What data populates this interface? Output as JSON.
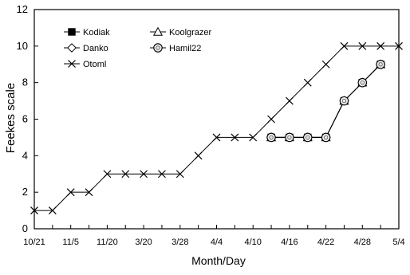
{
  "chart_data": {
    "type": "line",
    "xlabel": "Month/Day",
    "ylabel": "Feekes scale",
    "ylim": [
      0,
      12
    ],
    "yticks": [
      0,
      2,
      4,
      6,
      8,
      10,
      12
    ],
    "x_tick_labels": [
      "10/21",
      "11/5",
      "11/20",
      "3/20",
      "3/28",
      "4/4",
      "4/10",
      "4/16",
      "4/22",
      "4/28",
      "5/4"
    ],
    "grid": false,
    "legend_position": "top-left",
    "series": [
      {
        "name": "Kodiak",
        "marker": "filled-square",
        "points": [
          [
            13,
            5
          ],
          [
            14,
            5
          ],
          [
            15,
            5
          ],
          [
            16,
            5
          ],
          [
            17,
            7
          ],
          [
            18,
            8
          ],
          [
            19,
            9
          ]
        ]
      },
      {
        "name": "Koolgrazer",
        "marker": "open-triangle",
        "points": [
          [
            13,
            5
          ],
          [
            14,
            5
          ],
          [
            15,
            5
          ],
          [
            16,
            5
          ],
          [
            17,
            7
          ],
          [
            18,
            8
          ],
          [
            19,
            9
          ]
        ]
      },
      {
        "name": "Danko",
        "marker": "open-diamond",
        "points": [
          [
            13,
            5
          ],
          [
            14,
            5
          ],
          [
            15,
            5
          ],
          [
            16,
            5
          ],
          [
            17,
            7
          ],
          [
            18,
            8
          ],
          [
            19,
            9
          ]
        ]
      },
      {
        "name": "Hamil22",
        "marker": "open-circle",
        "points": [
          [
            13,
            5
          ],
          [
            14,
            5
          ],
          [
            15,
            5
          ],
          [
            16,
            5
          ],
          [
            17,
            7
          ],
          [
            18,
            8
          ],
          [
            19,
            9
          ]
        ]
      },
      {
        "name": "Otoml",
        "marker": "x",
        "points": [
          [
            0,
            1
          ],
          [
            1,
            1
          ],
          [
            2,
            2
          ],
          [
            3,
            2
          ],
          [
            4,
            3
          ],
          [
            5,
            3
          ],
          [
            6,
            3
          ],
          [
            7,
            3
          ],
          [
            8,
            3
          ],
          [
            9,
            4
          ],
          [
            10,
            5
          ],
          [
            11,
            5
          ],
          [
            12,
            5
          ],
          [
            13,
            6
          ],
          [
            14,
            7
          ],
          [
            15,
            8
          ],
          [
            16,
            9
          ],
          [
            17,
            10
          ],
          [
            18,
            10
          ],
          [
            19,
            10
          ],
          [
            20,
            10
          ]
        ]
      }
    ]
  }
}
